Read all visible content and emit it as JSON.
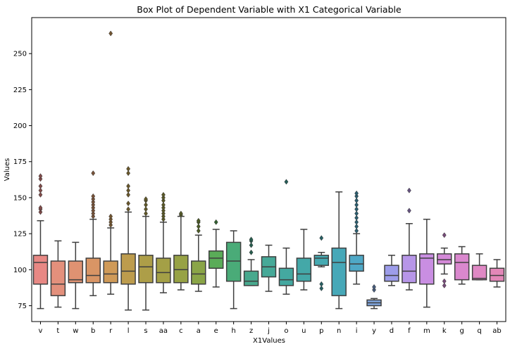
{
  "chart_data": {
    "type": "box",
    "title": "Box Plot of Dependent Variable with X1 Categorical Variable",
    "xlabel": "X1Values",
    "ylabel": "Values",
    "ylim": [
      64,
      275
    ],
    "yticks": [
      75,
      100,
      125,
      150,
      175,
      200,
      225,
      250
    ],
    "grid": false,
    "legend": "none",
    "boxes": [
      {
        "category": "v",
        "color": "#e88884",
        "whisker_low": 73,
        "q1": 90,
        "median": 105,
        "q3": 110,
        "whisker_high": 134,
        "outliers": [
          140,
          142,
          143,
          152,
          155,
          158,
          163,
          165
        ]
      },
      {
        "category": "t",
        "color": "#e3907c",
        "whisker_low": 74,
        "q1": 82,
        "median": 90,
        "q3": 106,
        "whisker_high": 120,
        "outliers": []
      },
      {
        "category": "w",
        "color": "#df9272",
        "whisker_low": 73,
        "q1": 91,
        "median": 93,
        "q3": 106,
        "whisker_high": 119,
        "outliers": []
      },
      {
        "category": "b",
        "color": "#d99565",
        "whisker_low": 82,
        "q1": 91,
        "median": 96,
        "q3": 108,
        "whisker_high": 135,
        "outliers": [
          137,
          139,
          141,
          143,
          145,
          147,
          149,
          151,
          167
        ]
      },
      {
        "category": "r",
        "color": "#cf9a58",
        "whisker_low": 83,
        "q1": 91,
        "median": 97,
        "q3": 106,
        "whisker_high": 129,
        "outliers": [
          131,
          133,
          135,
          137,
          264
        ]
      },
      {
        "category": "l",
        "color": "#bd9c4d",
        "whisker_low": 72,
        "q1": 90,
        "median": 99,
        "q3": 111,
        "whisker_high": 140,
        "outliers": [
          142,
          146,
          152,
          155,
          158,
          167,
          170
        ]
      },
      {
        "category": "s",
        "color": "#ad9e48",
        "whisker_low": 72,
        "q1": 91,
        "median": 102,
        "q3": 110,
        "whisker_high": 137,
        "outliers": [
          139,
          142,
          145,
          148,
          149
        ]
      },
      {
        "category": "aa",
        "color": "#a4a046",
        "whisker_low": 84,
        "q1": 91,
        "median": 98,
        "q3": 108,
        "whisker_high": 133,
        "outliers": [
          135,
          137,
          139,
          141,
          143,
          145,
          148,
          150,
          152
        ]
      },
      {
        "category": "c",
        "color": "#97a245",
        "whisker_low": 86,
        "q1": 91,
        "median": 100,
        "q3": 110,
        "whisker_high": 137,
        "outliers": [
          138,
          139
        ]
      },
      {
        "category": "a",
        "color": "#8aa547",
        "whisker_low": 85,
        "q1": 90,
        "median": 97,
        "q3": 106,
        "whisker_high": 124,
        "outliers": [
          127,
          130,
          133,
          134
        ]
      },
      {
        "category": "e",
        "color": "#5aac58",
        "whisker_low": 88,
        "q1": 101,
        "median": 108,
        "q3": 113,
        "whisker_high": 128,
        "outliers": [
          133
        ]
      },
      {
        "category": "h",
        "color": "#4aab78",
        "whisker_low": 73,
        "q1": 92,
        "median": 106,
        "q3": 119,
        "whisker_high": 127,
        "outliers": []
      },
      {
        "category": "z",
        "color": "#48a98e",
        "whisker_low": 89,
        "q1": 89,
        "median": 92,
        "q3": 99,
        "whisker_high": 107,
        "outliers": [
          112,
          117,
          120,
          121
        ]
      },
      {
        "category": "j",
        "color": "#46a998",
        "whisker_low": 85,
        "q1": 95,
        "median": 102,
        "q3": 109,
        "whisker_high": 117,
        "outliers": []
      },
      {
        "category": "o",
        "color": "#44a8a0",
        "whisker_low": 83,
        "q1": 89,
        "median": 93,
        "q3": 101,
        "whisker_high": 115,
        "outliers": [
          161
        ]
      },
      {
        "category": "u",
        "color": "#44a8a8",
        "whisker_low": 86,
        "q1": 92,
        "median": 97,
        "q3": 108,
        "whisker_high": 128,
        "outliers": []
      },
      {
        "category": "p",
        "color": "#46aab2",
        "whisker_low": 102,
        "q1": 103,
        "median": 108,
        "q3": 110,
        "whisker_high": 112,
        "outliers": [
          87,
          90,
          122
        ]
      },
      {
        "category": "n",
        "color": "#47a8b8",
        "whisker_low": 73,
        "q1": 82,
        "median": 105,
        "q3": 115,
        "whisker_high": 154,
        "outliers": []
      },
      {
        "category": "i",
        "color": "#4fa8c6",
        "whisker_low": 90,
        "q1": 99,
        "median": 104,
        "q3": 110,
        "whisker_high": 125,
        "outliers": [
          127,
          130,
          133,
          136,
          139,
          142,
          145,
          148,
          151,
          153
        ]
      },
      {
        "category": "y",
        "color": "#7ea4dc",
        "whisker_low": 73,
        "q1": 75,
        "median": 77,
        "q3": 79,
        "whisker_high": 80,
        "outliers": [
          86,
          88
        ]
      },
      {
        "category": "d",
        "color": "#9d9dea",
        "whisker_low": 89,
        "q1": 92,
        "median": 96,
        "q3": 103,
        "whisker_high": 110,
        "outliers": []
      },
      {
        "category": "f",
        "color": "#b796e8",
        "whisker_low": 86,
        "q1": 91,
        "median": 99,
        "q3": 110,
        "whisker_high": 132,
        "outliers": [
          141,
          155
        ]
      },
      {
        "category": "m",
        "color": "#c98ee2",
        "whisker_low": 74,
        "q1": 90,
        "median": 108,
        "q3": 111,
        "whisker_high": 135,
        "outliers": []
      },
      {
        "category": "k",
        "color": "#d489d8",
        "whisker_low": 97,
        "q1": 104,
        "median": 107,
        "q3": 111,
        "whisker_high": 115,
        "outliers": [
          89,
          92,
          124
        ]
      },
      {
        "category": "g",
        "color": "#da88ce",
        "whisker_low": 90,
        "q1": 93,
        "median": 105,
        "q3": 111,
        "whisker_high": 116,
        "outliers": []
      },
      {
        "category": "q",
        "color": "#df88c4",
        "whisker_low": 93,
        "q1": 93,
        "median": 94,
        "q3": 103,
        "whisker_high": 111,
        "outliers": []
      },
      {
        "category": "ab",
        "color": "#e387b8",
        "whisker_low": 88,
        "q1": 92,
        "median": 96,
        "q3": 101,
        "whisker_high": 107,
        "outliers": []
      }
    ]
  }
}
